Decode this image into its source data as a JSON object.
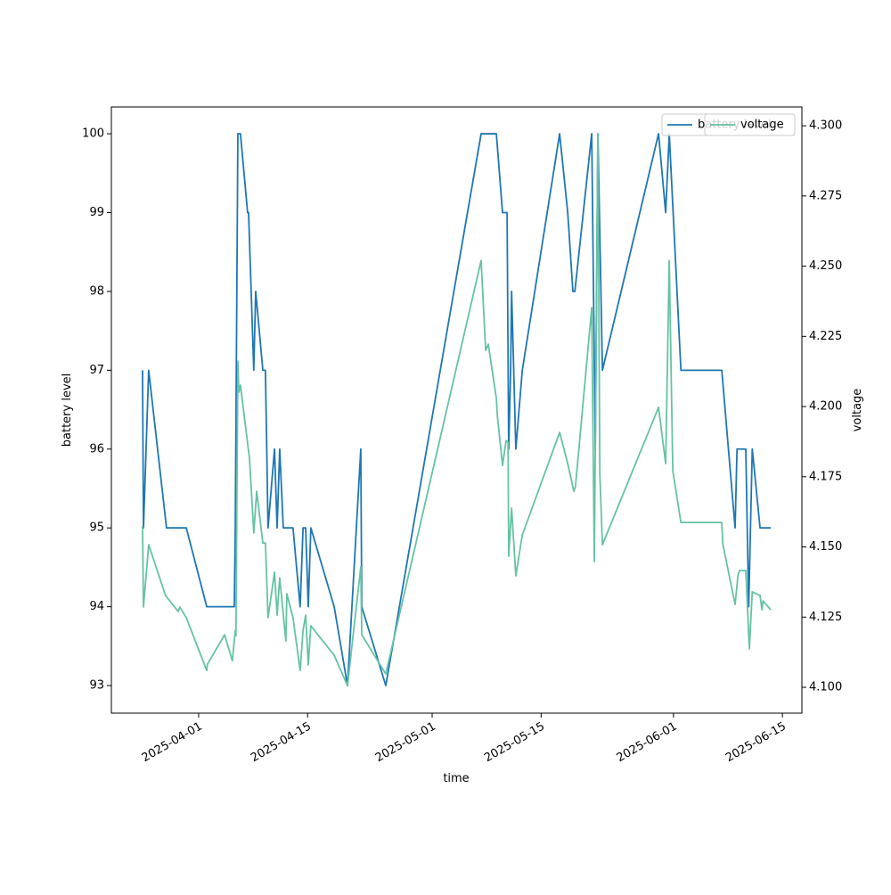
{
  "chart_data": {
    "type": "line",
    "xlabel": "time",
    "ylabel": "battery level",
    "y2label": "voltage",
    "xlim": [
      "2025-03-20 19:00",
      "2025-06-17 12:00"
    ],
    "xticks": [
      "2025-04-01",
      "2025-04-15",
      "2025-05-01",
      "2025-05-15",
      "2025-06-01",
      "2025-06-15"
    ],
    "ylim": [
      92.65,
      100.34
    ],
    "yticks": [
      93,
      94,
      95,
      96,
      97,
      98,
      99,
      100
    ],
    "y2lim": [
      4.0908,
      4.3067
    ],
    "y2ticks": [
      {
        "value": 4.1,
        "label": "4.100"
      },
      {
        "value": 4.125,
        "label": "4.125"
      },
      {
        "value": 4.15,
        "label": "4.150"
      },
      {
        "value": 4.175,
        "label": "4.175"
      },
      {
        "value": 4.2,
        "label": "4.200"
      },
      {
        "value": 4.225,
        "label": "4.225"
      },
      {
        "value": 4.25,
        "label": "4.250"
      },
      {
        "value": 4.275,
        "label": "4.275"
      },
      {
        "value": 4.3,
        "label": "4.300"
      }
    ],
    "legend": "upper right",
    "series": [
      {
        "name": "battery level",
        "color": "#1f77b4",
        "axis": "y",
        "x": [
          "2025-03-24 19:00",
          "2025-03-24 22:00",
          "2025-03-25 14:00",
          "2025-03-27 21:00",
          "2025-03-30 10:00",
          "2025-04-02 01:00",
          "2025-04-05 14:00",
          "2025-04-05 17:00",
          "2025-04-06 01:00",
          "2025-04-06 09:00",
          "2025-04-07 07:00",
          "2025-04-07 10:00",
          "2025-04-08 02:00",
          "2025-04-08 08:00",
          "2025-04-09 06:00",
          "2025-04-09 14:00",
          "2025-04-09 22:00",
          "2025-04-10 18:00",
          "2025-04-11 02:00",
          "2025-04-11 10:00",
          "2025-04-11 21:00",
          "2025-04-12 08:00",
          "2025-04-13 03:00",
          "2025-04-14 01:00",
          "2025-04-14 10:00",
          "2025-04-14 18:00",
          "2025-04-15 02:00",
          "2025-04-15 10:00",
          "2025-04-18 10:00",
          "2025-04-20 03:00",
          "2025-04-21 20:00",
          "2025-04-21 23:00",
          "2025-04-25 01:00",
          "2025-05-07 07:00",
          "2025-05-09 06:00",
          "2025-05-10 01:00",
          "2025-05-10 15:00",
          "2025-05-10 20:00",
          "2025-05-11 02:00",
          "2025-05-11 05:00",
          "2025-05-11 18:00",
          "2025-05-12 14:00",
          "2025-05-17 09:00",
          "2025-05-18 10:00",
          "2025-05-19 02:00",
          "2025-05-19 08:00",
          "2025-05-21 12:00",
          "2025-05-21 23:00",
          "2025-05-22 07:00",
          "2025-05-22 21:00",
          "2025-05-30 02:00",
          "2025-05-31 00:00",
          "2025-05-31 11:00",
          "2025-06-01 23:00",
          "2025-06-07 05:00",
          "2025-06-08 22:00",
          "2025-06-09 04:00",
          "2025-06-10 07:00",
          "2025-06-10 16:00",
          "2025-06-11 03:00",
          "2025-06-12 03:00",
          "2025-06-13 12:00"
        ],
        "values": [
          97,
          95,
          97,
          95,
          95,
          94,
          94,
          95,
          100,
          100,
          99,
          99,
          97,
          98,
          97,
          97,
          95,
          96,
          95,
          96,
          95,
          95,
          95,
          94,
          95,
          95,
          94,
          95,
          94,
          93,
          96,
          94,
          93,
          100,
          100,
          99,
          99,
          96,
          97,
          98,
          96,
          97,
          100,
          99,
          98,
          98,
          100,
          96,
          100,
          97,
          100,
          99,
          100,
          97,
          97,
          95,
          96,
          96,
          94,
          96,
          95,
          95
        ]
      },
      {
        "name": "voltage",
        "color": "#66c2a5",
        "axis": "y2",
        "x": [
          "2025-03-24 19:00",
          "2025-03-24 22:00",
          "2025-03-25 14:00",
          "2025-03-27 18:00",
          "2025-03-29 09:00",
          "2025-03-29 14:00",
          "2025-03-30 10:00",
          "2025-04-02 01:00",
          "2025-04-02 03:00",
          "2025-04-04 08:00",
          "2025-04-05 08:00",
          "2025-04-05 17:00",
          "2025-04-05 19:00",
          "2025-04-06 01:00",
          "2025-04-06 04:00",
          "2025-04-06 09:00",
          "2025-04-07 13:00",
          "2025-04-08 02:00",
          "2025-04-08 11:00",
          "2025-04-09 06:00",
          "2025-04-09 14:00",
          "2025-04-09 22:00",
          "2025-04-10 18:00",
          "2025-04-11 02:00",
          "2025-04-11 10:00",
          "2025-04-12 05:00",
          "2025-04-12 08:00",
          "2025-04-13 03:00",
          "2025-04-14 01:00",
          "2025-04-14 10:00",
          "2025-04-14 18:00",
          "2025-04-15 02:00",
          "2025-04-15 10:00",
          "2025-04-18 10:00",
          "2025-04-20 03:00",
          "2025-04-21 20:00",
          "2025-04-21 23:00",
          "2025-04-25 01:00",
          "2025-05-07 07:00",
          "2025-05-07 21:00",
          "2025-05-08 05:00",
          "2025-05-09 06:00",
          "2025-05-09 09:00",
          "2025-05-10 01:00",
          "2025-05-10 12:00",
          "2025-05-10 18:00",
          "2025-05-10 20:00",
          "2025-05-11 05:00",
          "2025-05-11 18:00",
          "2025-05-12 14:00",
          "2025-05-17 09:00",
          "2025-05-18 10:00",
          "2025-05-19 05:00",
          "2025-05-19 10:00",
          "2025-05-21 12:00",
          "2025-05-21 20:00",
          "2025-05-22 07:00",
          "2025-05-22 13:00",
          "2025-05-22 21:00",
          "2025-05-30 02:00",
          "2025-05-31 00:00",
          "2025-05-31 11:00",
          "2025-05-31 22:00",
          "2025-06-01 23:00",
          "2025-06-07 05:00",
          "2025-06-07 08:00",
          "2025-06-08 22:00",
          "2025-06-09 07:00",
          "2025-06-09 12:00",
          "2025-06-10 07:00",
          "2025-06-10 18:00",
          "2025-06-11 03:00",
          "2025-06-12 03:00",
          "2025-06-12 09:00",
          "2025-06-12 12:00",
          "2025-06-13 12:00"
        ],
        "values": [
          4.1575,
          4.1286,
          4.1508,
          4.1327,
          4.127,
          4.1286,
          4.1248,
          4.106,
          4.1082,
          4.1187,
          4.1095,
          4.1203,
          4.1184,
          4.2162,
          4.2051,
          4.2076,
          4.1813,
          4.155,
          4.1698,
          4.1514,
          4.1514,
          4.1248,
          4.141,
          4.1257,
          4.139,
          4.1165,
          4.1333,
          4.1248,
          4.106,
          4.1203,
          4.1257,
          4.108,
          4.1219,
          4.1114,
          4.1006,
          4.1429,
          4.1187,
          4.1048,
          4.252,
          4.22,
          4.2222,
          4.2029,
          4.1968,
          4.179,
          4.1879,
          4.1873,
          4.1467,
          4.1638,
          4.1397,
          4.1543,
          4.1908,
          4.1797,
          4.1698,
          4.1717,
          4.2352,
          4.1448,
          4.2971,
          4.1759,
          4.1508,
          4.1997,
          4.1797,
          4.252,
          4.1771,
          4.1587,
          4.1587,
          4.1511,
          4.1295,
          4.14,
          4.1416,
          4.1416,
          4.1137,
          4.134,
          4.1327,
          4.1276,
          4.1308,
          4.1276
        ]
      }
    ]
  }
}
